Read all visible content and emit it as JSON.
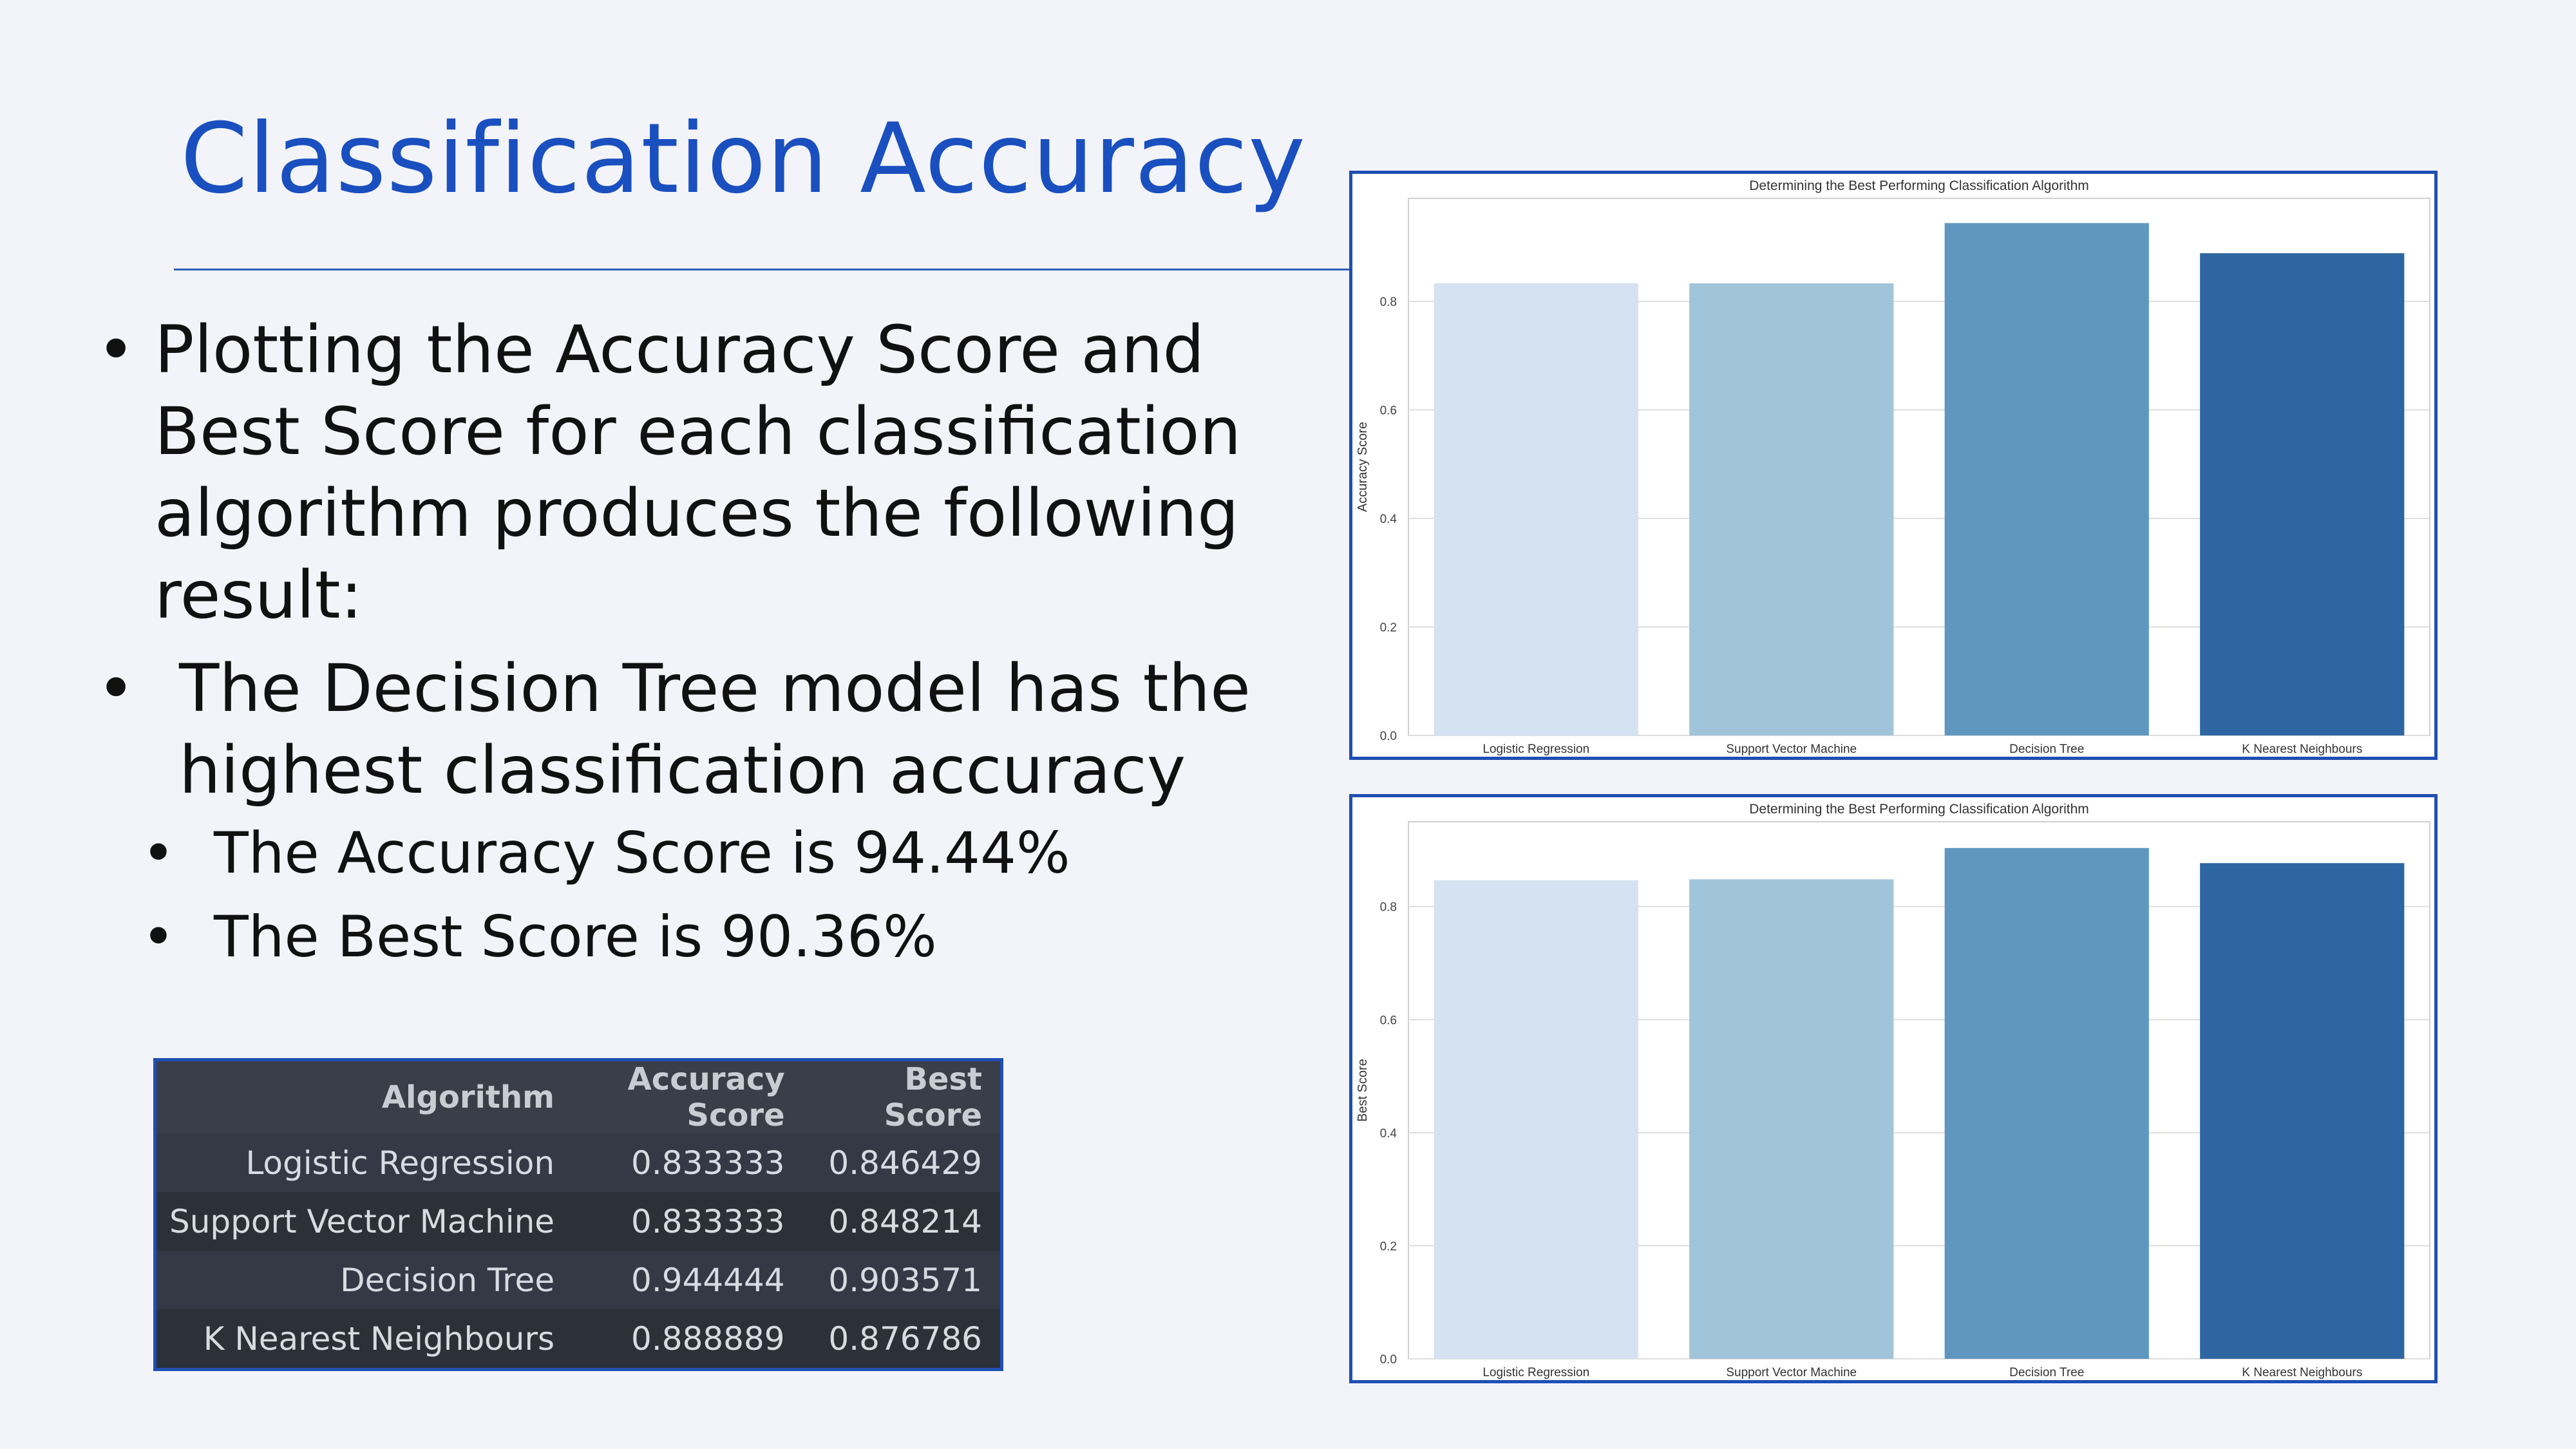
{
  "slide": {
    "title": "Classification Accuracy",
    "bullets": [
      "Plotting the Accuracy Score and Best Score for each classification algorithm produces the following result:",
      "The Decision Tree model has the highest classification accuracy"
    ],
    "sub_bullets": [
      "The Accuracy Score is 94.44%",
      "The Best Score is 90.36%"
    ],
    "bullet_glyph": "•"
  },
  "table": {
    "headers": [
      "Algorithm",
      "Accuracy Score",
      "Best Score"
    ],
    "rows": [
      [
        "Logistic Regression",
        "0.833333",
        "0.846429"
      ],
      [
        "Support Vector Machine",
        "0.833333",
        "0.848214"
      ],
      [
        "Decision Tree",
        "0.944444",
        "0.903571"
      ],
      [
        "K Nearest Neighbours",
        "0.888889",
        "0.876786"
      ]
    ]
  },
  "colors": {
    "title": "#1a4fbf",
    "frame": "#1f4fb3",
    "bars": [
      "#d4e2f1",
      "#a0c4da",
      "#5f97c0",
      "#2d66a0"
    ]
  },
  "chart_data": [
    {
      "type": "bar",
      "title": "Determining the Best Performing Classification Algorithm",
      "xlabel": "",
      "ylabel": "Accuracy Score",
      "categories": [
        "Logistic Regression",
        "Support Vector Machine",
        "Decision Tree",
        "K Nearest Neighbours"
      ],
      "values": [
        0.833333,
        0.833333,
        0.944444,
        0.888889
      ],
      "ylim": [
        0,
        0.99
      ],
      "yticks": [
        "0.0",
        "0.2",
        "0.4",
        "0.6",
        "0.8"
      ],
      "grid": true
    },
    {
      "type": "bar",
      "title": "Determining the Best Performing Classification Algorithm",
      "xlabel": "",
      "ylabel": "Best Score",
      "categories": [
        "Logistic Regression",
        "Support Vector Machine",
        "Decision Tree",
        "K Nearest Neighbours"
      ],
      "values": [
        0.846429,
        0.848214,
        0.903571,
        0.876786
      ],
      "ylim": [
        0,
        0.95
      ],
      "yticks": [
        "0.0",
        "0.2",
        "0.4",
        "0.6",
        "0.8"
      ],
      "grid": true
    }
  ]
}
